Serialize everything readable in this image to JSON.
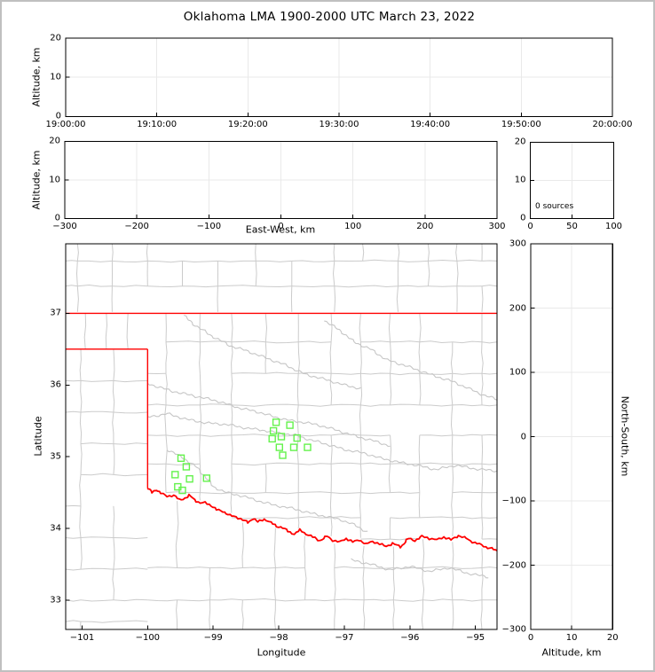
{
  "title": "Oklahoma LMA 1900-2000 UTC March 23, 2022",
  "annotation": {
    "sources_count": "0 sources"
  },
  "axis_labels": {
    "altitude": "Altitude, km",
    "east_west": "East-West, km",
    "latitude": "Latitude",
    "longitude": "Longitude",
    "north_south": "North-South, km"
  },
  "colors": {
    "state_border": "#ff0000",
    "county_line": "#cbcbcb",
    "river_gray": "#c6c6c6",
    "station_green": "#64f24c",
    "gridline": "#e9e9e9",
    "axis": "#000000",
    "frame": "#c0c0c0"
  },
  "chart_data": [
    {
      "id": "time_height_panel",
      "type": "scatter",
      "ylabel": "Altitude, km",
      "ylim": [
        0,
        20
      ],
      "yticks": [
        "0",
        "10",
        "20"
      ],
      "xtick_labels": [
        "19:00:00",
        "19:10:00",
        "19:20:00",
        "19:30:00",
        "19:40:00",
        "19:50:00",
        "20:00:00"
      ],
      "grid": true,
      "points": []
    },
    {
      "id": "east_west_height_panel",
      "type": "scatter",
      "xlabel": "East-West, km",
      "ylabel": "Altitude, km",
      "xlim": [
        -300,
        300
      ],
      "xticks": [
        "−300",
        "−200",
        "−100",
        "0",
        "100",
        "200",
        "300"
      ],
      "ylim": [
        0,
        20
      ],
      "yticks": [
        "0",
        "10",
        "20"
      ],
      "grid": true,
      "points": []
    },
    {
      "id": "altitude_histogram_panel",
      "type": "histogram",
      "annotation": "0 sources",
      "xlim": [
        0,
        100
      ],
      "xticks": [
        "0",
        "50",
        "100"
      ],
      "ylim": [
        0,
        20
      ],
      "yticks": [
        "0",
        "10",
        "20"
      ],
      "grid": true,
      "values": []
    },
    {
      "id": "plan_view_map",
      "type": "map-scatter",
      "xlabel": "Longitude",
      "ylabel": "Latitude",
      "xlim": [
        -101.25,
        -94.67
      ],
      "xticks": [
        "−101",
        "−100",
        "−99",
        "−98",
        "−97",
        "−96",
        "−95"
      ],
      "ylim": [
        32.59,
        37.97
      ],
      "yticks": [
        "33",
        "34",
        "35",
        "36",
        "37"
      ],
      "grid": false,
      "source_points": [],
      "lma_stations_lon_lat": [
        [
          -98.04,
          35.48
        ],
        [
          -97.83,
          35.44
        ],
        [
          -98.08,
          35.36
        ],
        [
          -97.96,
          35.28
        ],
        [
          -98.1,
          35.25
        ],
        [
          -97.72,
          35.26
        ],
        [
          -97.99,
          35.13
        ],
        [
          -97.77,
          35.13
        ],
        [
          -97.56,
          35.13
        ],
        [
          -97.94,
          35.02
        ],
        [
          -99.49,
          34.98
        ],
        [
          -99.41,
          34.86
        ],
        [
          -99.58,
          34.75
        ],
        [
          -99.36,
          34.69
        ],
        [
          -99.1,
          34.7
        ],
        [
          -99.54,
          34.58
        ],
        [
          -99.47,
          34.53
        ]
      ]
    },
    {
      "id": "north_south_height_panel",
      "type": "scatter",
      "xlabel": "Altitude, km",
      "ylabel": "North-South, km",
      "xlim": [
        0,
        20
      ],
      "xticks": [
        "0",
        "10",
        "20"
      ],
      "ylim": [
        -300,
        300
      ],
      "yticks": [
        "−300",
        "−200",
        "−100",
        "0",
        "100",
        "200",
        "300"
      ],
      "grid": true,
      "points": []
    }
  ],
  "basemap": {
    "oklahoma_border": {
      "north_lat": 37.0,
      "panhandle_south_lat": 36.5,
      "west_lon": -100.0,
      "red_river_lon_lat": [
        [
          -100.0,
          34.56
        ],
        [
          -99.93,
          34.5
        ],
        [
          -99.87,
          34.54
        ],
        [
          -99.8,
          34.49
        ],
        [
          -99.7,
          34.45
        ],
        [
          -99.6,
          34.46
        ],
        [
          -99.52,
          34.4
        ],
        [
          -99.43,
          34.42
        ],
        [
          -99.36,
          34.46
        ],
        [
          -99.28,
          34.4
        ],
        [
          -99.2,
          34.35
        ],
        [
          -99.12,
          34.36
        ],
        [
          -99.03,
          34.32
        ],
        [
          -98.95,
          34.26
        ],
        [
          -98.85,
          34.24
        ],
        [
          -98.75,
          34.18
        ],
        [
          -98.65,
          34.16
        ],
        [
          -98.55,
          34.12
        ],
        [
          -98.47,
          34.08
        ],
        [
          -98.39,
          34.14
        ],
        [
          -98.32,
          34.09
        ],
        [
          -98.22,
          34.13
        ],
        [
          -98.12,
          34.08
        ],
        [
          -98.03,
          34.03
        ],
        [
          -97.94,
          34.01
        ],
        [
          -97.86,
          33.96
        ],
        [
          -97.76,
          33.92
        ],
        [
          -97.67,
          33.98
        ],
        [
          -97.58,
          33.92
        ],
        [
          -97.48,
          33.88
        ],
        [
          -97.37,
          33.83
        ],
        [
          -97.26,
          33.89
        ],
        [
          -97.17,
          33.83
        ],
        [
          -97.07,
          33.81
        ],
        [
          -96.97,
          33.86
        ],
        [
          -96.87,
          33.81
        ],
        [
          -96.77,
          33.84
        ],
        [
          -96.67,
          33.78
        ],
        [
          -96.57,
          33.82
        ],
        [
          -96.46,
          33.78
        ],
        [
          -96.36,
          33.75
        ],
        [
          -96.26,
          33.79
        ],
        [
          -96.14,
          33.74
        ],
        [
          -96.02,
          33.86
        ],
        [
          -95.92,
          33.83
        ],
        [
          -95.81,
          33.89
        ],
        [
          -95.7,
          33.86
        ],
        [
          -95.59,
          33.84
        ],
        [
          -95.48,
          33.88
        ],
        [
          -95.37,
          33.84
        ],
        [
          -95.26,
          33.9
        ],
        [
          -95.14,
          33.86
        ],
        [
          -95.04,
          33.81
        ],
        [
          -94.94,
          33.78
        ],
        [
          -94.84,
          33.74
        ],
        [
          -94.75,
          33.72
        ],
        [
          -94.67,
          33.68
        ]
      ]
    },
    "county_regions": [
      {
        "name": "kansas",
        "lon": [
          -101.25,
          -94.67
        ],
        "lat": [
          37.02,
          37.97
        ],
        "clip": "none",
        "v": [
          -101.07,
          -100.54,
          -100.0,
          -99.47,
          -98.93,
          -98.35,
          -97.8,
          -97.15,
          -96.72,
          -96.18,
          -95.72,
          -95.28,
          -94.9
        ],
        "h": [
          37.38,
          37.73
        ]
      },
      {
        "name": "ok_panhandle",
        "lon": [
          -101.25,
          -100.0
        ],
        "lat": [
          36.5,
          37.0
        ],
        "clip": "none",
        "v": [
          -100.95,
          -100.63,
          -100.3
        ],
        "h": []
      },
      {
        "name": "tx_panhandle",
        "lon": [
          -101.25,
          -100.0
        ],
        "lat": [
          32.59,
          36.5
        ],
        "clip": "none",
        "v": [
          -101.02,
          -100.52
        ],
        "h": [
          36.06,
          35.62,
          35.18,
          34.75,
          34.31,
          33.87,
          33.43,
          33.0,
          32.7
        ]
      },
      {
        "name": "oklahoma",
        "lon": [
          -100.0,
          -94.67
        ],
        "lat": [
          32.59,
          36.99
        ],
        "clip": "above_river",
        "v": [
          -99.72,
          -99.2,
          -98.72,
          -98.2,
          -97.7,
          -97.2,
          -96.75,
          -96.3,
          -95.85,
          -95.35,
          -94.9
        ],
        "h": [
          36.6,
          36.16,
          35.72,
          35.3,
          34.9,
          34.5,
          34.15,
          33.85
        ]
      },
      {
        "name": "north_texas",
        "lon": [
          -100.0,
          -94.67
        ],
        "lat": [
          32.59,
          34.6
        ],
        "clip": "below_river",
        "v": [
          -99.55,
          -99.05,
          -98.55,
          -98.05,
          -97.6,
          -97.15,
          -96.7,
          -96.25,
          -95.8,
          -95.35,
          -94.9
        ],
        "h": [
          33.45,
          33.0
        ]
      }
    ],
    "rivers": [
      {
        "name": "cimarron",
        "pts": [
          [
            -99.45,
            36.97
          ],
          [
            -99.3,
            36.85
          ],
          [
            -99.05,
            36.7
          ],
          [
            -98.75,
            36.55
          ],
          [
            -98.5,
            36.48
          ],
          [
            -98.2,
            36.38
          ],
          [
            -97.9,
            36.28
          ],
          [
            -97.6,
            36.15
          ],
          [
            -97.3,
            36.08
          ],
          [
            -97.0,
            36.0
          ],
          [
            -96.75,
            35.95
          ]
        ]
      },
      {
        "name": "arkansas",
        "pts": [
          [
            -97.3,
            36.9
          ],
          [
            -97.05,
            36.75
          ],
          [
            -96.85,
            36.6
          ],
          [
            -96.6,
            36.5
          ],
          [
            -96.35,
            36.35
          ],
          [
            -96.1,
            36.28
          ],
          [
            -95.85,
            36.2
          ],
          [
            -95.6,
            36.12
          ],
          [
            -95.35,
            36.05
          ],
          [
            -95.1,
            35.95
          ],
          [
            -94.85,
            35.85
          ],
          [
            -94.67,
            35.8
          ]
        ]
      },
      {
        "name": "north_canadian",
        "pts": [
          [
            -100.0,
            36.02
          ],
          [
            -99.65,
            35.92
          ],
          [
            -99.3,
            35.85
          ],
          [
            -98.95,
            35.78
          ],
          [
            -98.6,
            35.68
          ],
          [
            -98.3,
            35.62
          ],
          [
            -98.05,
            35.55
          ],
          [
            -97.8,
            35.5
          ],
          [
            -97.55,
            35.47
          ],
          [
            -97.3,
            35.42
          ],
          [
            -97.05,
            35.35
          ],
          [
            -96.8,
            35.28
          ],
          [
            -96.55,
            35.22
          ],
          [
            -96.3,
            35.15
          ]
        ]
      },
      {
        "name": "canadian",
        "pts": [
          [
            -100.0,
            35.55
          ],
          [
            -99.7,
            35.6
          ],
          [
            -99.4,
            35.52
          ],
          [
            -99.1,
            35.47
          ],
          [
            -98.8,
            35.45
          ],
          [
            -98.5,
            35.4
          ],
          [
            -98.25,
            35.37
          ],
          [
            -98.0,
            35.33
          ],
          [
            -97.75,
            35.3
          ],
          [
            -97.5,
            35.23
          ],
          [
            -97.25,
            35.17
          ],
          [
            -97.0,
            35.1
          ],
          [
            -96.7,
            35.05
          ],
          [
            -96.45,
            34.98
          ],
          [
            -96.2,
            34.93
          ],
          [
            -95.9,
            34.88
          ],
          [
            -95.6,
            34.82
          ],
          [
            -95.3,
            34.88
          ],
          [
            -95.0,
            34.83
          ],
          [
            -94.67,
            34.8
          ]
        ]
      },
      {
        "name": "washita",
        "pts": [
          [
            -99.7,
            35.1
          ],
          [
            -99.45,
            34.98
          ],
          [
            -99.25,
            34.85
          ],
          [
            -99.1,
            34.7
          ],
          [
            -99.0,
            34.58
          ],
          [
            -98.8,
            34.5
          ],
          [
            -98.55,
            34.45
          ],
          [
            -98.3,
            34.38
          ],
          [
            -98.05,
            34.32
          ],
          [
            -97.8,
            34.28
          ],
          [
            -97.55,
            34.22
          ],
          [
            -97.3,
            34.17
          ],
          [
            -97.05,
            34.12
          ],
          [
            -96.85,
            34.05
          ],
          [
            -96.65,
            33.95
          ]
        ]
      },
      {
        "name": "sulphur",
        "pts": [
          [
            -96.9,
            33.56
          ],
          [
            -96.6,
            33.5
          ],
          [
            -96.3,
            33.42
          ],
          [
            -96.0,
            33.47
          ],
          [
            -95.7,
            33.4
          ],
          [
            -95.4,
            33.45
          ],
          [
            -95.1,
            33.37
          ],
          [
            -94.8,
            33.32
          ]
        ]
      }
    ]
  }
}
